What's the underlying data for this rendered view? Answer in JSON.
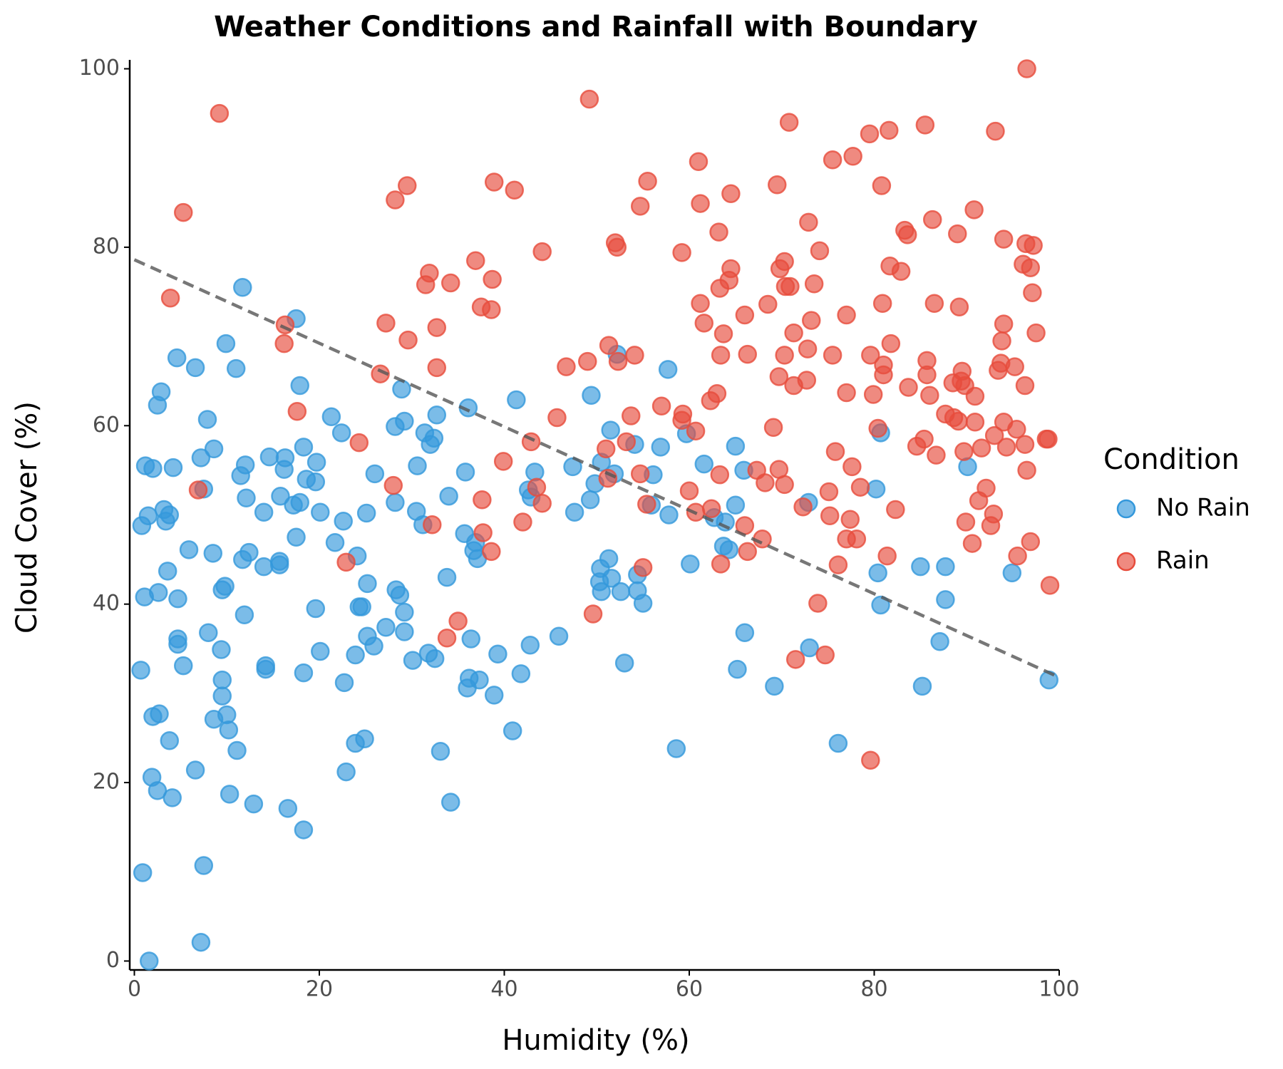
{
  "chart_data": {
    "type": "scatter",
    "title": "Weather Conditions and Rainfall with Boundary",
    "x_label": "Humidity (%)",
    "y_label": "Cloud Cover (%)",
    "legend_title": "Condition",
    "legend": "right",
    "xlim": [
      -0.5,
      100
    ],
    "ylim": [
      -1,
      101
    ],
    "xticks": [
      0,
      20,
      40,
      60,
      80,
      100
    ],
    "yticks": [
      0,
      20,
      40,
      60,
      80,
      100
    ],
    "series": [
      {
        "name": "No Rain",
        "color": "#3498db",
        "x": [
          0.9,
          1.6,
          7.2,
          7.5,
          1.9,
          2.5,
          4.1,
          10.3,
          12.9,
          16.6,
          18.3,
          34.2,
          2.0,
          2.7,
          3.8,
          6.6,
          8.6,
          10.0,
          10.2,
          11.1,
          9.5,
          9.5,
          9.4,
          8.0,
          4.7,
          4.7,
          5.3,
          0.7,
          14.2,
          14.2,
          18.3,
          20.1,
          22.7,
          22.9,
          23.9,
          24.9,
          23.9,
          25.2,
          25.9,
          24.3,
          24.6,
          27.2,
          29.2,
          29.2,
          30.1,
          31.8,
          32.5,
          33.1,
          33.8,
          36.0,
          36.2,
          37.3,
          36.4,
          38.9,
          39.3,
          41.8,
          40.9,
          42.8,
          45.9,
          1.1,
          2.6,
          4.7,
          3.6,
          9.5,
          9.8,
          11.9,
          8.5,
          5.9,
          11.7,
          12.4,
          14.0,
          15.7,
          15.7,
          19.6,
          21.7,
          24.1,
          25.2,
          37.1,
          36.7,
          36.9,
          35.7,
          0.8,
          1.5,
          3.2,
          3.4,
          3.8,
          1.2,
          2.0,
          4.2,
          7.2,
          8.6,
          7.5,
          7.9,
          2.5,
          2.9,
          4.6,
          6.6,
          9.9,
          11.0,
          11.7,
          17.5,
          17.9,
          11.5,
          12.0,
          12.1,
          14.0,
          14.6,
          15.8,
          16.3,
          16.2,
          17.2,
          17.5,
          17.9,
          18.3,
          18.6,
          19.6,
          19.7,
          20.1,
          21.3,
          22.4,
          22.6,
          25.1,
          26.0,
          28.3,
          28.7,
          28.2,
          29.2,
          28.9,
          28.2,
          30.5,
          30.6,
          31.4,
          31.2,
          32.0,
          32.4,
          32.7,
          34.0,
          35.8,
          36.1,
          41.3,
          42.6,
          42.9,
          43.3,
          47.4,
          47.6,
          49.4,
          49.3,
          49.8,
          50.5,
          50.4,
          50.3,
          50.5,
          51.3,
          51.6,
          51.5,
          51.9,
          52.2,
          52.6,
          53.0,
          54.1,
          54.4,
          54.4,
          55.0,
          55.9,
          56.1,
          56.9,
          57.7,
          57.8,
          58.6,
          59.7,
          60.1,
          61.6,
          62.7,
          63.7,
          64.3,
          63.9,
          65.0,
          65.0,
          65.2,
          65.9,
          66.0,
          69.2,
          72.9,
          73.0,
          76.1,
          80.2,
          80.4,
          80.7,
          80.7,
          85.0,
          85.2,
          87.1,
          87.7,
          87.7,
          90.1,
          94.9,
          98.9
        ],
        "values": [
          9.9,
          0,
          2.1,
          10.7,
          20.6,
          19.1,
          18.3,
          18.7,
          17.6,
          17.1,
          14.7,
          17.8,
          27.4,
          27.7,
          24.7,
          21.4,
          27.1,
          27.6,
          25.9,
          23.6,
          29.7,
          31.5,
          34.9,
          36.8,
          36.1,
          35.5,
          33.1,
          32.6,
          32.7,
          33.1,
          32.3,
          34.7,
          31.2,
          21.2,
          24.4,
          24.9,
          34.3,
          36.4,
          35.3,
          39.7,
          39.7,
          37.4,
          39.1,
          36.9,
          33.7,
          34.5,
          33.9,
          23.5,
          43.0,
          30.6,
          31.7,
          31.5,
          36.1,
          29.8,
          34.4,
          32.2,
          25.8,
          35.4,
          36.4,
          40.8,
          41.3,
          40.6,
          43.7,
          41.6,
          42.0,
          38.8,
          45.7,
          46.1,
          45.0,
          45.8,
          44.2,
          44.8,
          44.4,
          39.5,
          46.9,
          45.4,
          42.3,
          45.1,
          46.0,
          46.9,
          47.9,
          48.8,
          49.9,
          50.6,
          49.3,
          50.0,
          55.5,
          55.2,
          55.3,
          56.4,
          57.4,
          52.9,
          60.7,
          62.3,
          63.8,
          67.6,
          66.5,
          69.2,
          66.4,
          75.5,
          72.0,
          64.5,
          54.4,
          55.6,
          51.9,
          50.3,
          56.5,
          52.1,
          56.4,
          55.1,
          51.1,
          47.5,
          51.4,
          57.6,
          54.0,
          53.7,
          55.9,
          50.3,
          61.0,
          59.2,
          49.3,
          50.2,
          54.6,
          41.6,
          41.0,
          59.9,
          60.5,
          64.1,
          51.4,
          50.4,
          55.5,
          59.2,
          48.9,
          57.9,
          58.6,
          61.2,
          52.1,
          54.8,
          62.0,
          62.9,
          52.8,
          52.0,
          54.8,
          55.4,
          50.3,
          63.4,
          51.7,
          53.5,
          55.9,
          44.0,
          42.5,
          41.4,
          45.1,
          42.9,
          59.5,
          54.6,
          68.0,
          41.4,
          33.4,
          57.9,
          43.3,
          41.5,
          40.1,
          51.1,
          54.5,
          57.6,
          66.3,
          50.0,
          23.8,
          59.1,
          44.5,
          55.7,
          49.7,
          46.5,
          46.1,
          49.2,
          57.7,
          51.1,
          32.7,
          55.0,
          36.8,
          30.8,
          51.4,
          35.1,
          24.4,
          52.9,
          43.5,
          39.9,
          59.2,
          44.2,
          30.8,
          35.8,
          40.5,
          44.2,
          55.4,
          43.5,
          31.5
        ]
      },
      {
        "name": "Rain",
        "color": "#e74c3c",
        "x": [
          9.2,
          5.3,
          3.9,
          6.9,
          16.3,
          16.2,
          17.6,
          22.9,
          24.3,
          26.6,
          27.2,
          28.2,
          29.5,
          29.6,
          28.0,
          31.5,
          31.9,
          32.7,
          32.7,
          32.2,
          34.2,
          33.8,
          35.0,
          36.9,
          37.5,
          37.6,
          37.7,
          38.6,
          38.7,
          38.9,
          38.6,
          39.9,
          41.1,
          42.0,
          42.9,
          43.5,
          44.1,
          44.1,
          45.7,
          46.7,
          49.0,
          49.2,
          49.6,
          51.0,
          51.2,
          51.3,
          52.0,
          52.2,
          52.3,
          53.2,
          53.7,
          54.1,
          54.7,
          54.7,
          55.0,
          55.5,
          55.4,
          57.0,
          59.2,
          59.3,
          59.2,
          60.0,
          60.7,
          60.7,
          61.0,
          61.2,
          61.2,
          61.6,
          62.3,
          62.4,
          63.0,
          63.2,
          63.3,
          63.3,
          63.4,
          63.4,
          63.7,
          64.3,
          64.5,
          64.5,
          66.0,
          66.0,
          66.3,
          66.3,
          67.3,
          67.9,
          68.2,
          68.5,
          69.1,
          69.5,
          69.7,
          69.7,
          69.8,
          70.3,
          70.3,
          70.3,
          70.4,
          70.9,
          70.8,
          71.3,
          71.3,
          71.5,
          72.3,
          72.7,
          72.8,
          72.9,
          73.2,
          73.5,
          73.9,
          74.1,
          74.7,
          75.1,
          75.2,
          75.5,
          75.5,
          75.8,
          76.1,
          77.0,
          77.0,
          77.0,
          77.4,
          77.6,
          77.7,
          78.1,
          78.5,
          79.5,
          79.6,
          79.6,
          79.9,
          80.4,
          80.8,
          80.9,
          81.0,
          81.0,
          81.4,
          81.6,
          81.7,
          81.8,
          82.3,
          82.9,
          83.3,
          83.6,
          83.7,
          84.6,
          85.4,
          85.5,
          85.7,
          85.7,
          86.0,
          86.3,
          86.5,
          86.7,
          87.7,
          88.5,
          88.6,
          89.0,
          89.1,
          89.2,
          89.4,
          89.5,
          89.7,
          89.8,
          89.9,
          90.6,
          90.8,
          90.9,
          90.9,
          91.3,
          91.6,
          92.1,
          92.6,
          92.9,
          93.0,
          93.1,
          93.4,
          93.7,
          93.8,
          94.0,
          94.0,
          94.0,
          94.3,
          95.2,
          95.4,
          95.5,
          96.1,
          96.3,
          96.3,
          96.4,
          96.5,
          96.5,
          96.9,
          96.9,
          97.1,
          97.2,
          97.5,
          98.6,
          98.8,
          99.0
        ],
        "values": [
          95.0,
          83.9,
          74.3,
          52.8,
          71.3,
          69.2,
          61.6,
          44.7,
          58.1,
          65.8,
          71.5,
          85.3,
          86.9,
          69.6,
          53.3,
          75.8,
          77.1,
          71.0,
          66.5,
          48.9,
          76.0,
          36.2,
          38.1,
          78.5,
          73.3,
          51.7,
          48.0,
          73.0,
          76.4,
          87.3,
          45.9,
          56.0,
          86.4,
          49.2,
          58.2,
          53.1,
          79.5,
          51.3,
          60.9,
          66.6,
          67.2,
          96.6,
          38.9,
          57.4,
          54.1,
          69.0,
          80.5,
          80.0,
          67.2,
          58.2,
          61.1,
          67.9,
          84.6,
          54.6,
          44.1,
          87.4,
          51.2,
          62.2,
          79.4,
          61.3,
          60.6,
          52.7,
          59.4,
          50.3,
          89.6,
          84.9,
          73.7,
          71.5,
          62.8,
          50.7,
          63.6,
          81.7,
          75.4,
          54.5,
          67.9,
          44.5,
          70.3,
          76.3,
          77.6,
          86.0,
          48.8,
          72.4,
          68.0,
          45.9,
          55.0,
          47.3,
          53.6,
          73.6,
          59.8,
          87.0,
          65.5,
          55.1,
          77.6,
          78.4,
          67.9,
          53.4,
          75.6,
          75.6,
          94.0,
          70.4,
          64.5,
          33.8,
          50.9,
          65.1,
          68.6,
          82.8,
          71.8,
          75.9,
          40.1,
          79.6,
          34.3,
          52.6,
          49.9,
          67.9,
          89.8,
          57.1,
          44.4,
          72.4,
          63.7,
          47.3,
          49.5,
          55.4,
          90.2,
          47.3,
          53.1,
          92.7,
          22.5,
          67.9,
          63.5,
          59.7,
          86.9,
          73.7,
          66.8,
          65.7,
          45.4,
          93.1,
          77.9,
          69.2,
          50.6,
          77.3,
          81.9,
          81.4,
          64.3,
          57.7,
          58.5,
          93.7,
          67.3,
          65.7,
          63.4,
          83.1,
          73.7,
          56.7,
          61.3,
          64.8,
          60.9,
          81.5,
          60.5,
          73.3,
          65.0,
          66.1,
          57.1,
          64.5,
          49.2,
          46.8,
          84.2,
          60.4,
          63.3,
          51.6,
          57.5,
          53.0,
          48.8,
          50.1,
          58.9,
          93.0,
          66.2,
          67.0,
          69.5,
          71.4,
          80.9,
          60.4,
          57.6,
          66.6,
          59.6,
          45.4,
          78.1,
          57.9,
          64.5,
          80.4,
          55.0,
          100,
          77.7,
          47.0,
          74.9,
          80.2,
          70.4,
          58.5,
          58.5,
          42.1
        ]
      }
    ],
    "boundary": {
      "color": "#555555",
      "x": [
        0,
        100
      ],
      "values": [
        78.6,
        31.8
      ]
    }
  }
}
